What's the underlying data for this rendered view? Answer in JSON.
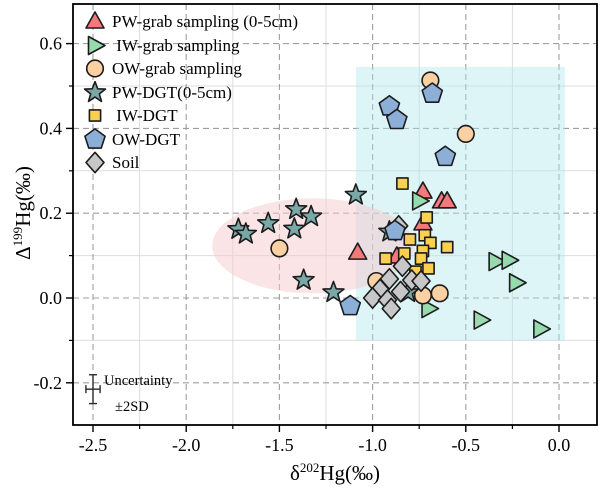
{
  "chart_data": {
    "type": "scatter",
    "title": "",
    "xlabel": "δ202Hg(‰)",
    "xlabel_parts": {
      "base": "δ",
      "sup": "202",
      "rest": "Hg(‰)"
    },
    "ylabel": "Δ199Hg(‰)",
    "ylabel_parts": {
      "base": "Δ",
      "sup": "199",
      "rest": "Hg(‰)"
    },
    "xlim": [
      -2.61,
      0.2
    ],
    "ylim": [
      -0.3,
      0.69
    ],
    "x_ticks": {
      "values": [
        -2.5,
        -2.0,
        -1.5,
        -1.0,
        -0.5,
        0.0
      ],
      "labels": [
        "-2.5",
        "-2.0",
        "-1.5",
        "-1.0",
        "-0.5",
        "0.0"
      ]
    },
    "y_ticks": {
      "values": [
        -0.2,
        0.0,
        0.2,
        0.4,
        0.6
      ],
      "labels": [
        "-0.2",
        "0.0",
        "0.2",
        "0.4",
        "0.6"
      ]
    },
    "x_minor_ticks": [
      -2.25,
      -1.75,
      -1.25,
      -0.75,
      -0.25
    ],
    "y_minor_ticks": [
      -0.1,
      0.1,
      0.3,
      0.5
    ],
    "grid": "major dashed gray + minor light gray",
    "legend_position": "upper-left",
    "series": [
      {
        "name": "PW-grab sampling (0-5cm)",
        "marker": "triangle-up",
        "fill": "#F5797A",
        "points": [
          [
            -1.08,
            0.107
          ],
          [
            -0.87,
            0.098
          ],
          [
            -0.73,
            0.251
          ],
          [
            -0.73,
            0.176
          ],
          [
            -0.63,
            0.228
          ],
          [
            -0.6,
            0.228
          ]
        ]
      },
      {
        "name": " IW-grab sampling",
        "marker": "triangle-right",
        "fill": "#96DBAD",
        "points": [
          [
            -0.75,
            0.229
          ],
          [
            -0.7,
            -0.025
          ],
          [
            -0.42,
            -0.052
          ],
          [
            -0.34,
            0.086
          ],
          [
            -0.27,
            0.089
          ],
          [
            -0.23,
            0.036
          ],
          [
            -0.1,
            -0.073
          ]
        ]
      },
      {
        "name": "OW-grab sampling",
        "marker": "circle",
        "fill": "#FBD0A3",
        "points": [
          [
            -1.5,
            0.117
          ],
          [
            -0.98,
            0.04
          ],
          [
            -0.73,
            0.006
          ],
          [
            -0.64,
            0.011
          ],
          [
            -0.69,
            0.513
          ],
          [
            -0.5,
            0.387
          ]
        ]
      },
      {
        "name": "PW-DGT(0-5cm)",
        "marker": "star",
        "fill": "#79A8A6",
        "points": [
          [
            -1.72,
            0.162
          ],
          [
            -1.68,
            0.151
          ],
          [
            -1.56,
            0.176
          ],
          [
            -1.41,
            0.209
          ],
          [
            -1.42,
            0.163
          ],
          [
            -1.33,
            0.192
          ],
          [
            -1.37,
            0.042
          ],
          [
            -1.21,
            0.013
          ],
          [
            -1.09,
            0.243
          ],
          [
            -0.91,
            0.156
          ],
          [
            -0.81,
            0.013
          ]
        ]
      },
      {
        "name": " IW-DGT",
        "marker": "square",
        "fill": "#F9D04F",
        "points": [
          [
            -0.84,
            0.27
          ],
          [
            -0.71,
            0.19
          ],
          [
            -0.72,
            0.148
          ],
          [
            -0.8,
            0.138
          ],
          [
            -0.69,
            0.13
          ],
          [
            -0.6,
            0.12
          ],
          [
            -0.73,
            0.111
          ],
          [
            -0.83,
            0.105
          ],
          [
            -0.93,
            0.093
          ],
          [
            -0.74,
            0.093
          ],
          [
            -0.7,
            0.07
          ],
          [
            -0.77,
            0.062
          ]
        ]
      },
      {
        "name": "OW-DGT",
        "marker": "pentagon",
        "fill": "#8CAFD8",
        "points": [
          [
            -0.68,
            0.482
          ],
          [
            -0.91,
            0.452
          ],
          [
            -0.87,
            0.42
          ],
          [
            -0.61,
            0.333
          ],
          [
            -0.88,
            0.158
          ],
          [
            -1.12,
            -0.019
          ]
        ]
      },
      {
        "name": "Soil",
        "marker": "diamond",
        "fill": "#C7C7C9",
        "points": [
          [
            -0.86,
            0.17
          ],
          [
            -0.84,
            0.075
          ],
          [
            -0.91,
            0.045
          ],
          [
            -0.79,
            0.042
          ],
          [
            -0.74,
            0.04
          ],
          [
            -0.96,
            0.02
          ],
          [
            -0.85,
            0.015
          ],
          [
            -1.0,
            0.0
          ],
          [
            -0.92,
            -0.005
          ],
          [
            -0.9,
            -0.025
          ]
        ]
      }
    ],
    "regions": [
      {
        "name": "cyan-rectangle",
        "type": "rect",
        "x": [
          -1.09,
          0.032
        ],
        "y": [
          -0.1,
          0.545
        ],
        "fill": "#AEE7EC",
        "opacity": 0.42
      },
      {
        "name": "pink-ellipse",
        "type": "ellipse",
        "cx": -1.32,
        "cy": 0.123,
        "rx": 0.54,
        "ry": 0.112,
        "fill": "#F6C9CD",
        "opacity": 0.5
      }
    ],
    "uncertainty": {
      "x": -2.5,
      "y": -0.215,
      "xerr": 0.038,
      "yerr": 0.034,
      "label_line1": "Uncertainty",
      "label_line2": "±2SD"
    }
  },
  "colors": {
    "axis": "#000000",
    "major_grid": "#9E9E9E",
    "minor_grid": "#DDDDDD",
    "marker_edge": "#1C1C1C",
    "background": "#FFFFFF"
  }
}
